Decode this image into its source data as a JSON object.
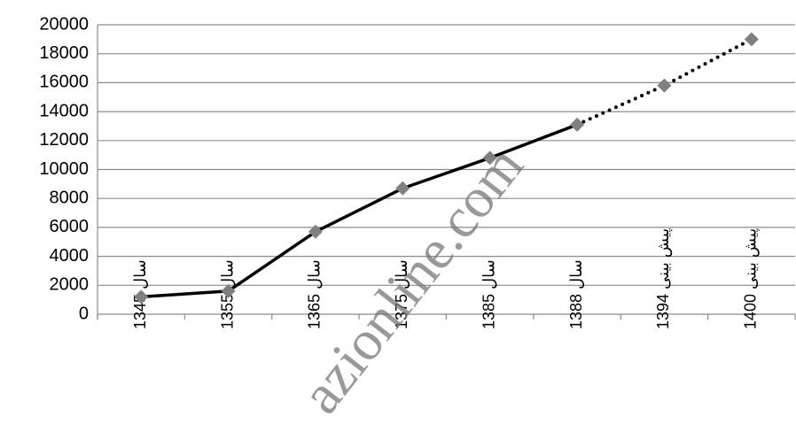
{
  "chart_data": {
    "type": "line",
    "categories": [
      "سال 1345",
      "سال 1355",
      "سال 1365",
      "سال 1375",
      "سال 1385",
      "سال 1388",
      "پیش بینی 1394",
      "پیش بینی 1400"
    ],
    "series": [
      {
        "color": "#000000",
        "marker_color": "#808080",
        "line_style": "solid",
        "values": [
          1200,
          1600,
          5700,
          8700,
          10800,
          13100,
          null,
          null
        ]
      },
      {
        "color": "#000000",
        "marker_color": "#808080",
        "line_style": "dotted",
        "values": [
          null,
          null,
          null,
          null,
          null,
          13100,
          15800,
          19000
        ]
      }
    ],
    "ylim": [
      0,
      20000
    ],
    "yticks": [
      0,
      2000,
      4000,
      6000,
      8000,
      10000,
      12000,
      14000,
      16000,
      18000,
      20000
    ],
    "grid": true,
    "watermark": "azionline.com"
  }
}
